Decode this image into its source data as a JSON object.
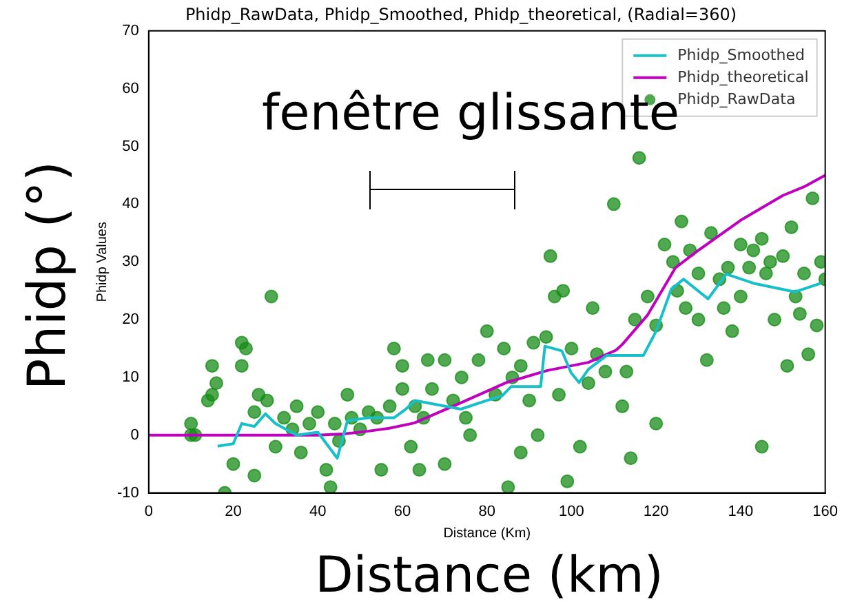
{
  "chart_data": {
    "type": "scatter",
    "title": "Phidp_RawData, Phidp_Smoothed, Phidp_theoretical, (Radial=360)",
    "xlabel": "Distance (Km)",
    "ylabel": "Phidp Values",
    "annotations": [
      "fenêtre glissante",
      "Phidp (°)",
      "Distance (km)"
    ],
    "xlim": [
      0,
      160
    ],
    "xticks": [
      0,
      20,
      40,
      60,
      80,
      100,
      120,
      140,
      160
    ],
    "ylim": [
      -10,
      70
    ],
    "yticks": [
      -10,
      0,
      10,
      20,
      30,
      40,
      50,
      60,
      70
    ],
    "grid": false,
    "legend": "top right",
    "series": [
      {
        "name": "Phidp_Smoothed",
        "type": "line",
        "color": "#17bfc8",
        "marker": "none",
        "x": [
          16.3,
          20,
          22,
          25,
          27.6,
          30,
          35,
          40,
          44.6,
          47,
          52,
          58,
          60.8,
          63,
          73.8,
          80,
          83.6,
          85.7,
          92.7,
          93.7,
          97.7,
          99.9,
          101.8,
          104,
          108.3,
          117,
          120,
          123.6,
          126.5,
          132.3,
          136.6,
          143,
          152.8,
          159
        ],
        "values": [
          -1.9,
          -1.5,
          2,
          1.5,
          3.7,
          2,
          0,
          0.5,
          -4,
          2.5,
          3,
          3,
          4.5,
          6,
          4.5,
          6,
          6.8,
          8.4,
          8.4,
          15.4,
          14.6,
          10.8,
          9.1,
          11.4,
          13.8,
          13.8,
          18,
          25.3,
          27,
          23.6,
          27.9,
          26.3,
          24.8,
          26.3
        ]
      },
      {
        "name": "Phidp_theoretical",
        "type": "line",
        "color": "#bf00bf",
        "marker": "none",
        "x": [
          0,
          20,
          40,
          46,
          52,
          56.9,
          62.8,
          73.8,
          84.6,
          94.3,
          104,
          110.5,
          112,
          118,
          124.6,
          130,
          140,
          150,
          155,
          160
        ],
        "values": [
          0,
          0,
          0,
          0.2,
          0.7,
          1.2,
          2.1,
          5.6,
          9.1,
          11.2,
          12.6,
          14.7,
          15.7,
          20.8,
          29,
          32,
          37.2,
          41.5,
          43,
          45
        ]
      },
      {
        "name": "Phidp_RawData",
        "type": "scatter",
        "color": "#168c16",
        "marker": "circle",
        "x": [
          10,
          10,
          11,
          14,
          15,
          15,
          16,
          18,
          20,
          22,
          22,
          23,
          25,
          26,
          25,
          28,
          29,
          30,
          32,
          35,
          36,
          38,
          40,
          42,
          43,
          45,
          47,
          48,
          50,
          52,
          54,
          55,
          57,
          58,
          60,
          60,
          62,
          64,
          65,
          67,
          70,
          70,
          72,
          74,
          75,
          78,
          80,
          82,
          84,
          85,
          86,
          88,
          90,
          91,
          92,
          94,
          95,
          96,
          98,
          99,
          100,
          102,
          104,
          105,
          108,
          110,
          112,
          114,
          115,
          116,
          118,
          120,
          120,
          122,
          124,
          126,
          127,
          128,
          130,
          130,
          132,
          133,
          135,
          136,
          138,
          140,
          140,
          142,
          143,
          145,
          145,
          146,
          148,
          150,
          151,
          152,
          153,
          155,
          156,
          157,
          158,
          159,
          160,
          34,
          44,
          63,
          76,
          66,
          88,
          97,
          106,
          113,
          125,
          137,
          147,
          154
        ],
        "values": [
          2,
          0,
          0,
          6,
          12,
          7,
          9,
          -10,
          -5,
          16,
          12,
          15,
          4,
          7,
          -7,
          6,
          24,
          -2,
          3,
          5,
          -3,
          2,
          4,
          -6,
          -9,
          -1,
          7,
          3,
          1,
          4,
          3,
          -6,
          5,
          15,
          8,
          12,
          -2,
          -6,
          3,
          8,
          13,
          -5,
          6,
          10,
          3,
          13,
          18,
          7,
          15,
          -9,
          10,
          12,
          6,
          16,
          0,
          17,
          31,
          24,
          25,
          -8,
          15,
          -2,
          9,
          22,
          11,
          40,
          5,
          -4,
          20,
          48,
          24,
          19,
          2,
          33,
          30,
          37,
          22,
          32,
          28,
          20,
          13,
          35,
          27,
          22,
          18,
          33,
          24,
          29,
          32,
          34,
          -2,
          28,
          20,
          31,
          12,
          36,
          24,
          28,
          14,
          41,
          19,
          30,
          27,
          1,
          2,
          5,
          0,
          13,
          -3,
          7,
          14,
          11,
          25,
          29,
          30,
          21
        ]
      }
    ]
  }
}
